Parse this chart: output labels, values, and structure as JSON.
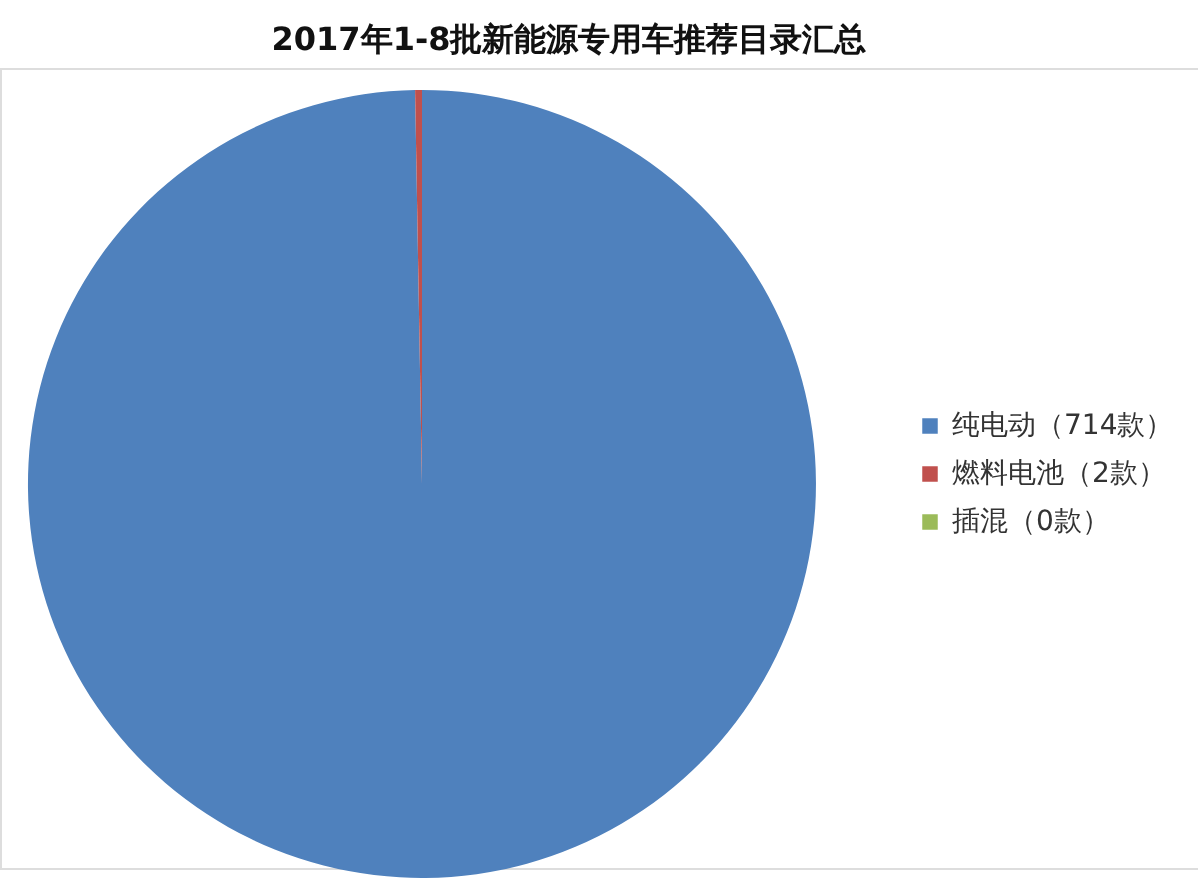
{
  "chart_data": {
    "type": "pie",
    "title": "2017年1-8批新能源专用车推荐目录汇总",
    "categories": [
      "纯电动（714款）",
      "燃料电池（2款）",
      "插混（0款）"
    ],
    "values": [
      714,
      2,
      0
    ],
    "colors": [
      "#4f81bd",
      "#c0504d",
      "#9bbb59"
    ],
    "legend": "right"
  }
}
